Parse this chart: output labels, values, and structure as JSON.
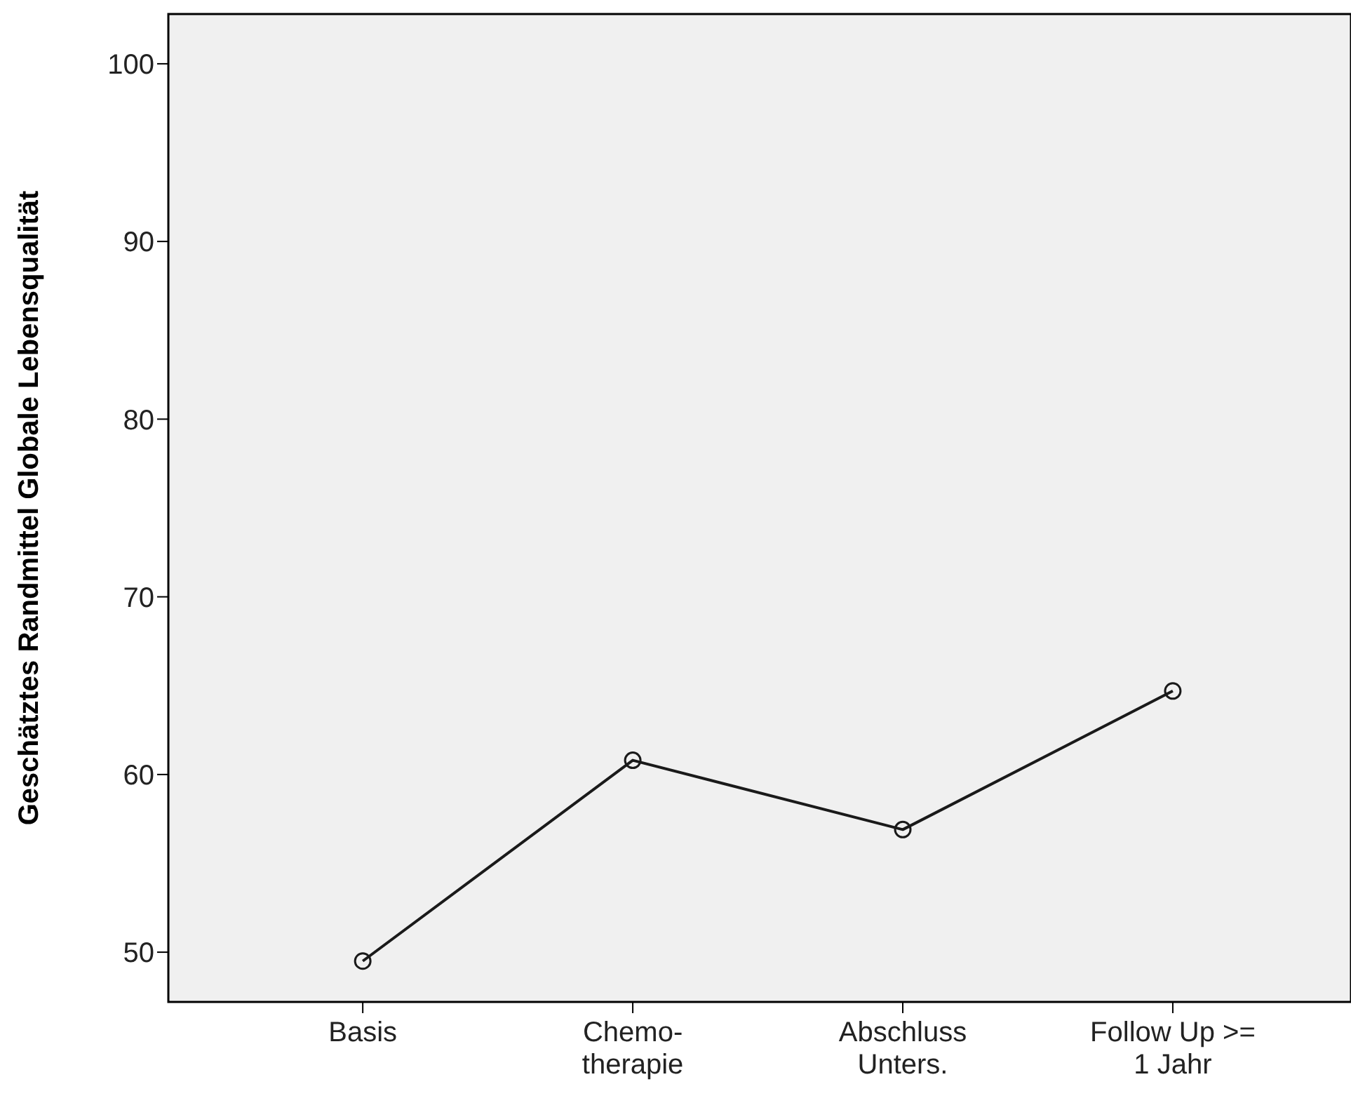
{
  "chart_data": {
    "type": "line",
    "ylabel": "Geschätztes Randmittel Globale Lebensqualität",
    "categories": [
      "Basis",
      "Chemo-\ntherapie",
      "Abschluss\nUnters.",
      "Follow Up >=\n1 Jahr"
    ],
    "series": [
      {
        "color": "#1a1a1a",
        "values": [
          49.5,
          60.8,
          56.9,
          64.7
        ]
      }
    ],
    "ylim": [
      47.2,
      102.8
    ],
    "yticks": [
      50,
      60,
      70,
      80,
      90,
      100
    ],
    "marker": "circle",
    "line_style": "solid"
  }
}
